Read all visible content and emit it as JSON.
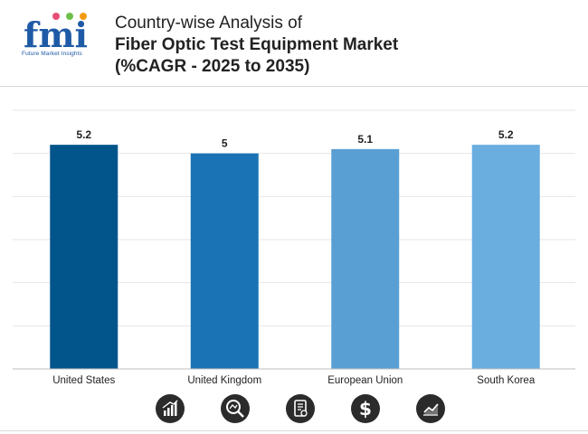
{
  "header": {
    "logo_letters": "fmi",
    "logo_caption": "Future Market Insights",
    "title_line1": "Country-wise Analysis of",
    "title_line2": "Fiber Optic Test Equipment Market",
    "title_line3": "(%CAGR - 2025 to 2035)"
  },
  "footer": {
    "icons": [
      "growth-bars-icon",
      "magnifier-chart-icon",
      "report-document-icon",
      "dollar-icon",
      "trend-line-icon"
    ]
  },
  "chart_data": {
    "type": "bar",
    "title": "",
    "xlabel": "",
    "ylabel": "",
    "categories": [
      "United States",
      "United Kingdom",
      "European Union",
      "South Korea"
    ],
    "values": [
      5.2,
      5,
      5.1,
      5.2
    ],
    "value_labels": [
      "5.2",
      "5",
      "5.1",
      "5.2"
    ],
    "bar_colors": [
      "#02558b",
      "#1a73b4",
      "#5a9fd4",
      "#6aaee0"
    ],
    "ylim": [
      0,
      6
    ],
    "grid": true,
    "legend": "none"
  }
}
